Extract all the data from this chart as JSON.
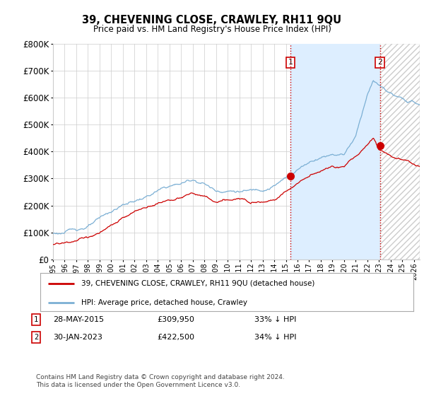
{
  "title": "39, CHEVENING CLOSE, CRAWLEY, RH11 9QU",
  "subtitle": "Price paid vs. HM Land Registry's House Price Index (HPI)",
  "ylim": [
    0,
    800000
  ],
  "xlim_start": 1995.0,
  "xlim_end": 2026.5,
  "hpi_color": "#7bafd4",
  "price_color": "#cc0000",
  "bg_color": "#ffffff",
  "grid_color": "#cccccc",
  "shading_color": "#ddeeff",
  "legend_label_red": "39, CHEVENING CLOSE, CRAWLEY, RH11 9QU (detached house)",
  "legend_label_blue": "HPI: Average price, detached house, Crawley",
  "transaction_1_date": "28-MAY-2015",
  "transaction_1_price": "£309,950",
  "transaction_1_hpi": "33% ↓ HPI",
  "transaction_1_x": 2015.4,
  "transaction_1_y": 309950,
  "transaction_2_date": "30-JAN-2023",
  "transaction_2_price": "£422,500",
  "transaction_2_hpi": "34% ↓ HPI",
  "transaction_2_x": 2023.08,
  "transaction_2_y": 422500,
  "footer": "Contains HM Land Registry data © Crown copyright and database right 2024.\nThis data is licensed under the Open Government Licence v3.0.",
  "vline_color": "#cc0000",
  "vline_style": ":"
}
